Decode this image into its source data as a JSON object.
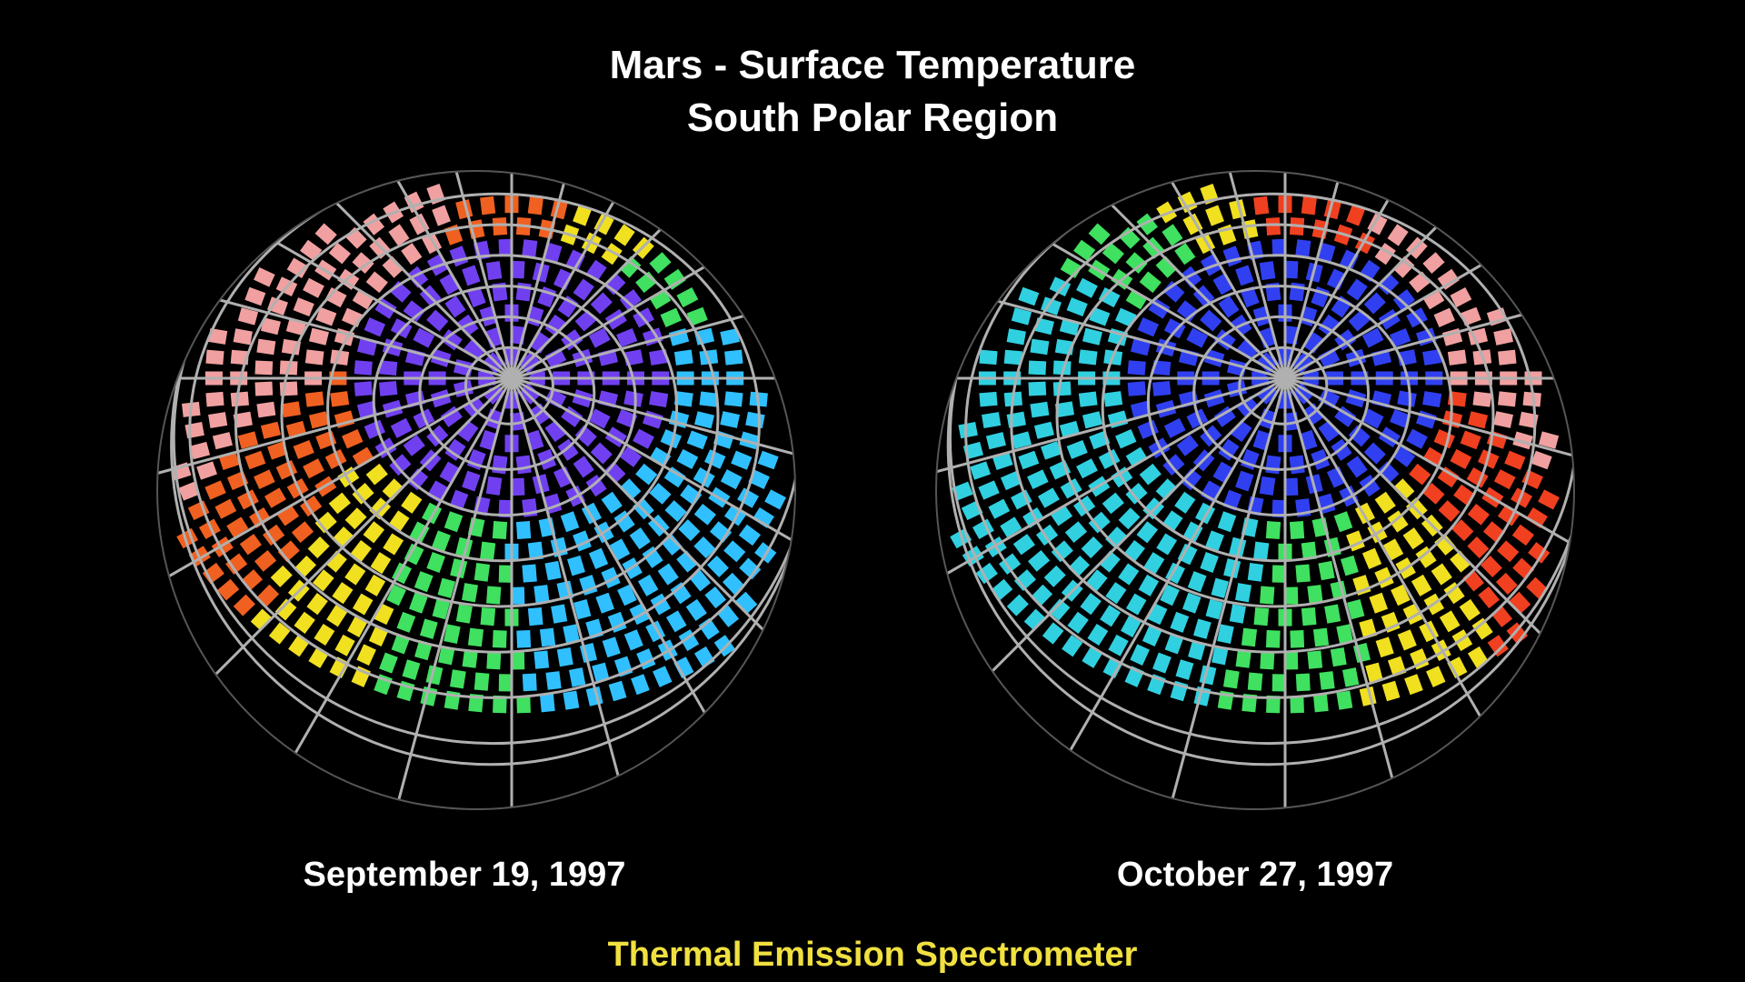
{
  "title": {
    "line1": "Mars - Surface Temperature",
    "line2": "South Polar Region"
  },
  "globes": [
    {
      "date": "September 19, 1997",
      "center_color": "#7040f0",
      "edge_colors": [
        "#30c0ff",
        "#40e060",
        "#f0e020",
        "#f06020",
        "#f0a0a0"
      ]
    },
    {
      "date": "October 27, 1997",
      "center_color": "#3040f0",
      "edge_colors": [
        "#30d0e0",
        "#40e060",
        "#f0e020",
        "#f04020",
        "#f0a0a0"
      ]
    }
  ],
  "instrument": "Thermal Emission Spectrometer",
  "colors": {
    "background": "#000000",
    "title": "#ffffff",
    "instrument": "#f0e040",
    "grid": "#b0b0b0"
  }
}
